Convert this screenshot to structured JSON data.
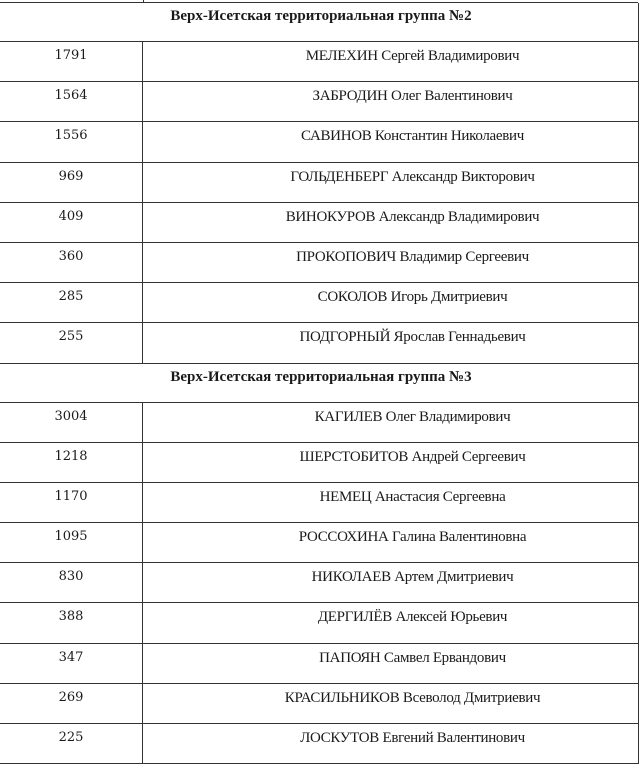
{
  "groups": [
    {
      "title": "Верх-Исетская территориальная группа №2",
      "rows": [
        {
          "votes": "1791",
          "name": "МЕЛЕХИН Сергей Владимирович"
        },
        {
          "votes": "1564",
          "name": "ЗАБРОДИН Олег Валентинович"
        },
        {
          "votes": "1556",
          "name": "САВИНОВ Константин Николаевич"
        },
        {
          "votes": "969",
          "name": "ГОЛЬДЕНБЕРГ Александр Викторович"
        },
        {
          "votes": "409",
          "name": "ВИНОКУРОВ Александр Владимирович"
        },
        {
          "votes": "360",
          "name": "ПРОКОПОВИЧ Владимир Сергеевич"
        },
        {
          "votes": "285",
          "name": "СОКОЛОВ Игорь Дмитриевич"
        },
        {
          "votes": "255",
          "name": "ПОДГОРНЫЙ Ярослав Геннадьевич"
        }
      ]
    },
    {
      "title": "Верх-Исетская территориальная группа №3",
      "rows": [
        {
          "votes": "3004",
          "name": "КАГИЛЕВ Олег Владимирович"
        },
        {
          "votes": "1218",
          "name": "ШЕРСТОБИТОВ Андрей Сергеевич"
        },
        {
          "votes": "1170",
          "name": "НЕМЕЦ Анастасия Сергеевна"
        },
        {
          "votes": "1095",
          "name": "РОССОХИНА Галина Валентиновна"
        },
        {
          "votes": "830",
          "name": "НИКОЛАЕВ Артем Дмитриевич"
        },
        {
          "votes": "388",
          "name": "ДЕРГИЛЁВ Алексей Юрьевич"
        },
        {
          "votes": "347",
          "name": "ПАПОЯН Самвел Ервандович"
        },
        {
          "votes": "269",
          "name": "КРАСИЛЬНИКОВ Всеволод Дмитриевич"
        },
        {
          "votes": "225",
          "name": "ЛОСКУТОВ Евгений Валентинович"
        }
      ]
    }
  ]
}
